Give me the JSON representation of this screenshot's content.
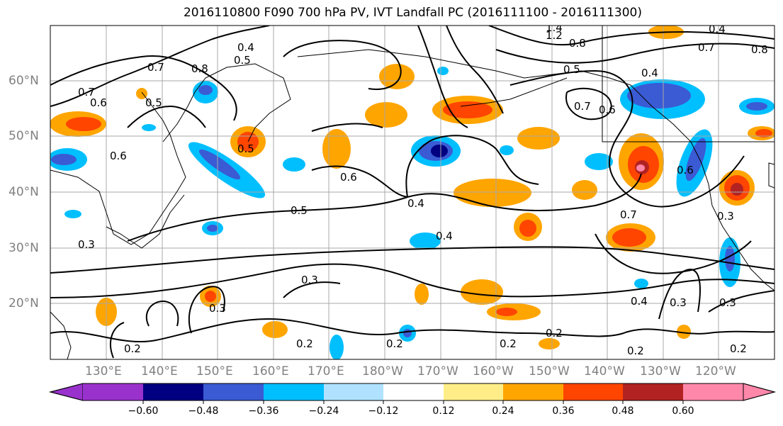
{
  "title": "2016110800 F090 700 hPa PV, IVT Landfall PC (2016111100 - 2016111300)",
  "map": {
    "lat_labels": [
      "60°N",
      "50°N",
      "40°N",
      "30°N",
      "20°N"
    ],
    "lon_labels": [
      "130°E",
      "140°E",
      "150°E",
      "160°E",
      "170°E",
      "180°W",
      "170°W",
      "160°W",
      "150°W",
      "140°W",
      "130°W",
      "120°W"
    ],
    "contour_labels": [
      "0.7",
      "0.8",
      "0.5",
      "0.4",
      "0.6",
      "0.5",
      "0.6",
      "0.7",
      "0.4",
      "0.5",
      "0.6",
      "0.7",
      "0.6",
      "0.4",
      "0.5",
      "0.4",
      "0.3",
      "0.7",
      "0.3",
      "0.3",
      "0.4",
      "0.3",
      "0.3",
      "0.2",
      "0.2",
      "0.2",
      "0.2",
      "0.2",
      "0.2",
      "0.2",
      "1.2",
      "0.8",
      "0.7",
      "1.4",
      "0.4",
      "0.5",
      "0.6",
      "0.8",
      "0.3"
    ]
  },
  "colorbar": {
    "ticks": [
      "−0.60",
      "−0.48",
      "−0.36",
      "−0.24",
      "−0.12",
      "0.12",
      "0.24",
      "0.36",
      "0.48",
      "0.60"
    ],
    "colors": [
      "#9932cc",
      "#000080",
      "#3a5bd4",
      "#00bfff",
      "#b0e2ff",
      "#ffffff",
      "#ffee88",
      "#ffa500",
      "#ff4500",
      "#b22222",
      "#ff88aa"
    ]
  }
}
